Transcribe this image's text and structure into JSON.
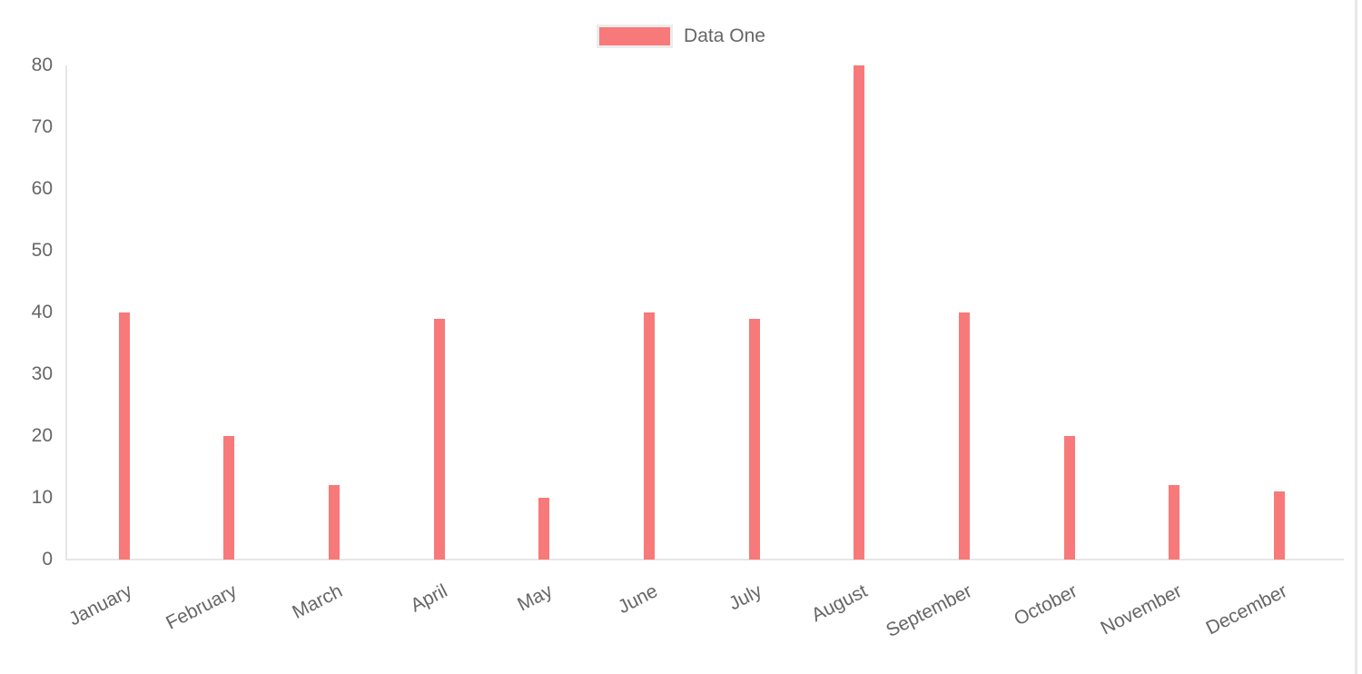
{
  "page": {
    "background": "#ffffff",
    "right_border_color": "#e7e7e7"
  },
  "legend": {
    "position": "top",
    "items": [
      {
        "label": "Data One",
        "swatch_color": "#f87979",
        "swatch_border_color": "#ececec"
      }
    ]
  },
  "chart_data": {
    "type": "bar",
    "title": "",
    "categories": [
      "January",
      "February",
      "March",
      "April",
      "May",
      "June",
      "July",
      "August",
      "September",
      "October",
      "November",
      "December"
    ],
    "series": [
      {
        "name": "Data One",
        "color": "#f87979",
        "values": [
          40,
          20,
          12,
          39,
          10,
          40,
          39,
          80,
          40,
          20,
          12,
          11
        ]
      }
    ],
    "xlabel": "",
    "ylabel": "",
    "ylim": [
      0,
      80
    ],
    "yticks": [
      0,
      10,
      20,
      30,
      40,
      50,
      60,
      70,
      80
    ],
    "grid": "off",
    "legend_position": "top",
    "axis_color": "#e6e6e6",
    "tick_label_color": "#666666",
    "x_tick_rotation_deg": -27
  }
}
